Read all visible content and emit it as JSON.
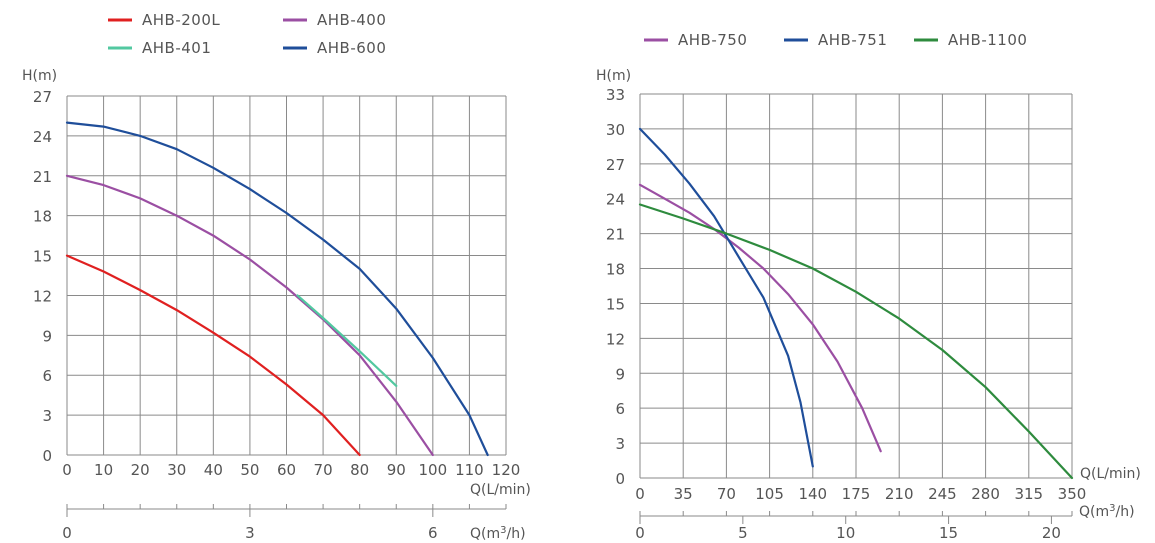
{
  "chart_data": [
    {
      "type": "line",
      "ylabel": "H(m)",
      "xlabel": "Q(L/min)",
      "x2label_pre": "Q(m",
      "x2label_sup": "3",
      "x2label_post": "/h)",
      "xlim": [
        0,
        120
      ],
      "ylim": [
        0,
        27
      ],
      "x_ticks": [
        "0",
        "10",
        "20",
        "30",
        "40",
        "50",
        "60",
        "70",
        "80",
        "90",
        "100",
        "110",
        "120"
      ],
      "y_ticks": [
        "0",
        "3",
        "6",
        "9",
        "12",
        "15",
        "18",
        "21",
        "24",
        "27"
      ],
      "x2_ticks": [
        {
          "pos": 0,
          "label": "0"
        },
        {
          "pos": 50,
          "label": "3"
        },
        {
          "pos": 100,
          "label": "6"
        }
      ],
      "series": [
        {
          "name": "AHB-200L",
          "color": "#e02020",
          "points": [
            [
              0,
              15
            ],
            [
              10,
              13.8
            ],
            [
              20,
              12.4
            ],
            [
              30,
              10.9
            ],
            [
              40,
              9.2
            ],
            [
              50,
              7.4
            ],
            [
              60,
              5.3
            ],
            [
              70,
              3
            ],
            [
              80,
              0
            ]
          ]
        },
        {
          "name": "AHB-400",
          "color": "#9b4fa3",
          "points": [
            [
              0,
              21
            ],
            [
              10,
              20.3
            ],
            [
              20,
              19.3
            ],
            [
              30,
              18
            ],
            [
              40,
              16.5
            ],
            [
              50,
              14.7
            ],
            [
              60,
              12.6
            ],
            [
              70,
              10.2
            ],
            [
              80,
              7.5
            ],
            [
              90,
              4
            ],
            [
              100,
              0
            ]
          ]
        },
        {
          "name": "AHB-401",
          "color": "#52c8a0",
          "points": [
            [
              63,
              12
            ],
            [
              70,
              10.3
            ],
            [
              80,
              7.8
            ],
            [
              90,
              5.2
            ]
          ]
        },
        {
          "name": "AHB-600",
          "color": "#1f4e9a",
          "points": [
            [
              0,
              25
            ],
            [
              10,
              24.7
            ],
            [
              20,
              24
            ],
            [
              30,
              23
            ],
            [
              40,
              21.6
            ],
            [
              50,
              20
            ],
            [
              60,
              18.2
            ],
            [
              70,
              16.2
            ],
            [
              80,
              14
            ],
            [
              90,
              11
            ],
            [
              100,
              7.3
            ],
            [
              110,
              3
            ],
            [
              115,
              0
            ]
          ]
        }
      ]
    },
    {
      "type": "line",
      "ylabel": "H(m)",
      "xlabel": "Q(L/min)",
      "x2label_pre": "Q(m",
      "x2label_sup": "3",
      "x2label_post": "/h)",
      "xlim": [
        0,
        350
      ],
      "ylim": [
        0,
        33
      ],
      "x_ticks": [
        "0",
        "35",
        "70",
        "105",
        "140",
        "175",
        "210",
        "245",
        "280",
        "315",
        "350"
      ],
      "y_ticks": [
        "0",
        "3",
        "6",
        "9",
        "12",
        "15",
        "18",
        "21",
        "24",
        "27",
        "30",
        "33"
      ],
      "x2_ticks": [
        {
          "pos": 0,
          "label": "0"
        },
        {
          "pos": 83.33,
          "label": "5"
        },
        {
          "pos": 166.67,
          "label": "10"
        },
        {
          "pos": 250,
          "label": "15"
        },
        {
          "pos": 333.33,
          "label": "20"
        }
      ],
      "series": [
        {
          "name": "AHB-750",
          "color": "#9b4fa3",
          "points": [
            [
              0,
              25.2
            ],
            [
              20,
              24
            ],
            [
              40,
              22.8
            ],
            [
              60,
              21.4
            ],
            [
              80,
              19.8
            ],
            [
              100,
              18
            ],
            [
              120,
              15.8
            ],
            [
              140,
              13.2
            ],
            [
              160,
              10
            ],
            [
              180,
              6
            ],
            [
              195,
              2.3
            ]
          ]
        },
        {
          "name": "AHB-751",
          "color": "#1f4e9a",
          "points": [
            [
              0,
              30
            ],
            [
              20,
              27.8
            ],
            [
              40,
              25.3
            ],
            [
              60,
              22.5
            ],
            [
              80,
              19
            ],
            [
              100,
              15.5
            ],
            [
              120,
              10.5
            ],
            [
              130,
              6.5
            ],
            [
              140,
              1
            ]
          ]
        },
        {
          "name": "AHB-1100",
          "color": "#2e8b3e",
          "points": [
            [
              0,
              23.5
            ],
            [
              35,
              22.3
            ],
            [
              70,
              21
            ],
            [
              105,
              19.6
            ],
            [
              140,
              18
            ],
            [
              175,
              16
            ],
            [
              210,
              13.7
            ],
            [
              245,
              11
            ],
            [
              280,
              7.8
            ],
            [
              315,
              4
            ],
            [
              350,
              0
            ]
          ]
        }
      ]
    }
  ]
}
